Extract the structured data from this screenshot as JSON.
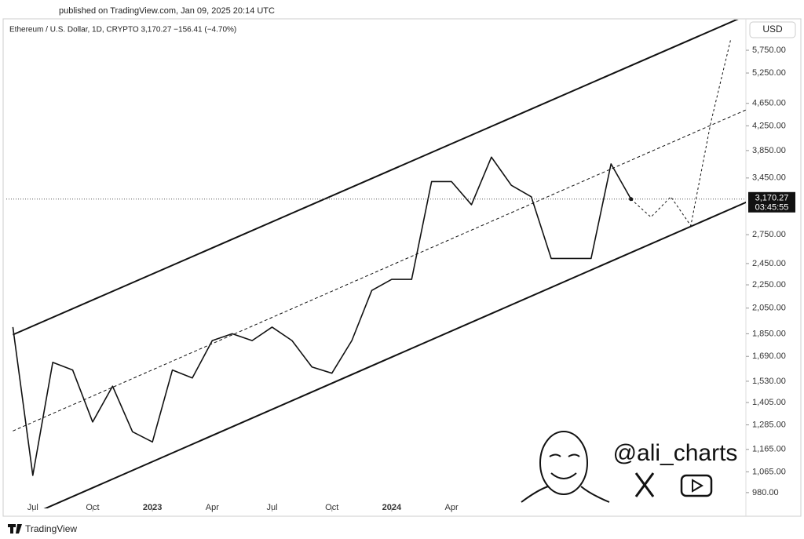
{
  "header": {
    "published": "published on TradingView.com, Jan 09, 2025 20:14 UTC"
  },
  "chart_data": {
    "type": "line",
    "title": "Ethereum / U.S. Dollar, 1D, CRYPTO 3,170.27 −156.41 (−4.70%)",
    "currency": "USD",
    "log_scale": true,
    "x": [
      "2022-06",
      "2022-07",
      "2022-08",
      "2022-09",
      "2022-10",
      "2022-11",
      "2022-12",
      "2023-01",
      "2023-02",
      "2023-03",
      "2023-04",
      "2023-05",
      "2023-06",
      "2023-07",
      "2023-08",
      "2023-09",
      "2023-10",
      "2023-11",
      "2023-12",
      "2024-01",
      "2024-02",
      "2024-03",
      "2024-04",
      "2024-05",
      "2024-06",
      "2024-07",
      "2024-08",
      "2024-09",
      "2024-10",
      "2024-11",
      "2024-12",
      "2025-01"
    ],
    "series": [
      {
        "color": "#111111",
        "values": [
          1900,
          1050,
          1650,
          1600,
          1300,
          1500,
          1250,
          1200,
          1600,
          1550,
          1800,
          1850,
          1800,
          1900,
          1800,
          1620,
          1580,
          1800,
          2200,
          2300,
          2300,
          3400,
          3400,
          3100,
          3750,
          3350,
          3200,
          2500,
          2500,
          2500,
          3650,
          3170.27
        ]
      }
    ],
    "projection": {
      "x": [
        "2025-01",
        "2025-02",
        "2025-03",
        "2025-04",
        "2025-05",
        "2025-06"
      ],
      "values": [
        3170.27,
        2950,
        3200,
        2850,
        4300,
        6000
      ]
    },
    "channel": {
      "x": [
        "2022-06",
        "2025-07"
      ],
      "upper": [
        1843,
        6660
      ],
      "middle": [
        1254,
        4567
      ],
      "lower": [
        869,
        3155
      ]
    },
    "last_price": {
      "value": 3170.27,
      "label": "3,170.27"
    },
    "countdown": "03:45:55",
    "xlim": [
      "2022-05",
      "2025-07"
    ],
    "ylim": [
      920,
      6500
    ],
    "xticks": [
      {
        "value": "2022-07",
        "label": "Jul"
      },
      {
        "value": "2022-10",
        "label": "Oct"
      },
      {
        "value": "2023-01",
        "label": "2023"
      },
      {
        "value": "2023-04",
        "label": "Apr"
      },
      {
        "value": "2023-07",
        "label": "Jul"
      },
      {
        "value": "2023-10",
        "label": "Oct"
      },
      {
        "value": "2024-01",
        "label": "2024"
      },
      {
        "value": "2024-04",
        "label": "Apr"
      }
    ],
    "yticks": [
      {
        "value": 5750,
        "label": "5,750.00"
      },
      {
        "value": 5250,
        "label": "5,250.00"
      },
      {
        "value": 4650,
        "label": "4,650.00"
      },
      {
        "value": 4250,
        "label": "4,250.00"
      },
      {
        "value": 3850,
        "label": "3,850.00"
      },
      {
        "value": 3450,
        "label": "3,450.00"
      },
      {
        "value": 2750,
        "label": "2,750.00"
      },
      {
        "value": 2450,
        "label": "2,450.00"
      },
      {
        "value": 2250,
        "label": "2,250.00"
      },
      {
        "value": 2050,
        "label": "2,050.00"
      },
      {
        "value": 1850,
        "label": "1,850.00"
      },
      {
        "value": 1690,
        "label": "1,690.00"
      },
      {
        "value": 1530,
        "label": "1,530.00"
      },
      {
        "value": 1405,
        "label": "1,405.00"
      },
      {
        "value": 1285,
        "label": "1,285.00"
      },
      {
        "value": 1165,
        "label": "1,165.00"
      },
      {
        "value": 1065,
        "label": "1,065.00"
      },
      {
        "value": 980,
        "label": "980.00"
      }
    ]
  },
  "watermark": {
    "handle": "@ali_charts"
  },
  "footer": {
    "brand": "TradingView"
  }
}
